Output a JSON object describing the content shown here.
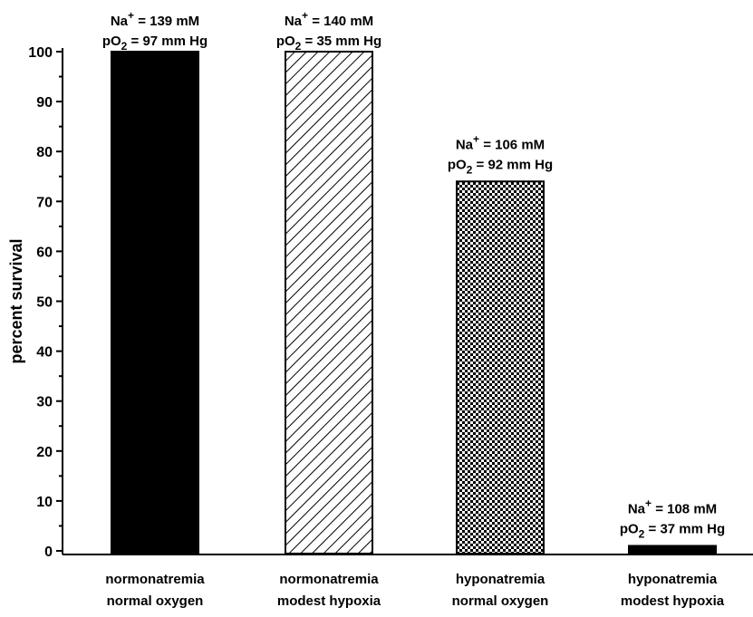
{
  "chart_data": {
    "type": "bar",
    "ylabel": "percent survival",
    "xlabel": "",
    "ylim": [
      0,
      100
    ],
    "yticks": [
      0,
      10,
      20,
      30,
      40,
      50,
      60,
      70,
      80,
      90,
      100
    ],
    "categories": [
      [
        "normonatremia",
        "normal oxygen"
      ],
      [
        "normonatremia",
        "modest hypoxia"
      ],
      [
        "hyponatremia",
        "normal oxygen"
      ],
      [
        "hyponatremia",
        "modest hypoxia"
      ]
    ],
    "values": [
      100,
      100,
      74,
      1
    ],
    "fills": [
      "solid-black",
      "diagonal-hatch",
      "checkerboard",
      "solid-black"
    ],
    "annotations": [
      {
        "na_prefix": "Na",
        "na_sup": "+",
        "na_value": " = 139 mM",
        "po2_prefix": "pO",
        "po2_sub": "2",
        "po2_value": " = 97 mm Hg"
      },
      {
        "na_prefix": "Na",
        "na_sup": "+",
        "na_value": " = 140 mM",
        "po2_prefix": "pO",
        "po2_sub": "2",
        "po2_value": " = 35 mm Hg"
      },
      {
        "na_prefix": "Na",
        "na_sup": "+",
        "na_value": " = 106 mM",
        "po2_prefix": "pO",
        "po2_sub": "2",
        "po2_value": " = 92 mm Hg"
      },
      {
        "na_prefix": "Na",
        "na_sup": "+",
        "na_value": " = 108 mM",
        "po2_prefix": "pO",
        "po2_sub": "2",
        "po2_value": " = 37 mm Hg"
      }
    ],
    "grid": false,
    "colors": {
      "bar": "#000000",
      "background": "#ffffff"
    }
  }
}
